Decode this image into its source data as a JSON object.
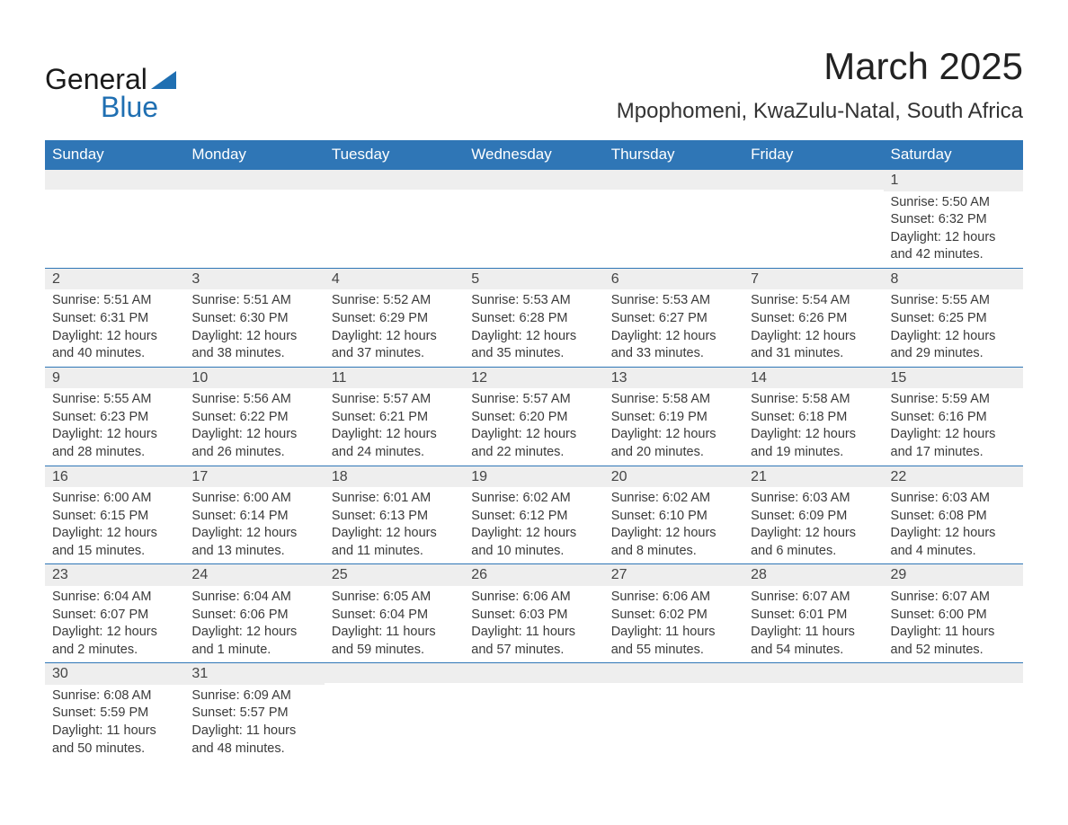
{
  "logo": {
    "text1": "General",
    "text2": "Blue",
    "color_text": "#1a1a1a",
    "color_blue": "#1f6fb2"
  },
  "header": {
    "month_title": "March 2025",
    "location": "Mpophomeni, KwaZulu-Natal, South Africa"
  },
  "calendar": {
    "header_bg": "#2f76b6",
    "header_fg": "#ffffff",
    "daynum_bg": "#eeeeee",
    "border_color": "#2f76b6",
    "text_color": "#3a3a3a",
    "day_headers": [
      "Sunday",
      "Monday",
      "Tuesday",
      "Wednesday",
      "Thursday",
      "Friday",
      "Saturday"
    ],
    "weeks": [
      [
        {
          "day": "",
          "sunrise": "",
          "sunset": "",
          "daylight": ""
        },
        {
          "day": "",
          "sunrise": "",
          "sunset": "",
          "daylight": ""
        },
        {
          "day": "",
          "sunrise": "",
          "sunset": "",
          "daylight": ""
        },
        {
          "day": "",
          "sunrise": "",
          "sunset": "",
          "daylight": ""
        },
        {
          "day": "",
          "sunrise": "",
          "sunset": "",
          "daylight": ""
        },
        {
          "day": "",
          "sunrise": "",
          "sunset": "",
          "daylight": ""
        },
        {
          "day": "1",
          "sunrise": "Sunrise: 5:50 AM",
          "sunset": "Sunset: 6:32 PM",
          "daylight": "Daylight: 12 hours and 42 minutes."
        }
      ],
      [
        {
          "day": "2",
          "sunrise": "Sunrise: 5:51 AM",
          "sunset": "Sunset: 6:31 PM",
          "daylight": "Daylight: 12 hours and 40 minutes."
        },
        {
          "day": "3",
          "sunrise": "Sunrise: 5:51 AM",
          "sunset": "Sunset: 6:30 PM",
          "daylight": "Daylight: 12 hours and 38 minutes."
        },
        {
          "day": "4",
          "sunrise": "Sunrise: 5:52 AM",
          "sunset": "Sunset: 6:29 PM",
          "daylight": "Daylight: 12 hours and 37 minutes."
        },
        {
          "day": "5",
          "sunrise": "Sunrise: 5:53 AM",
          "sunset": "Sunset: 6:28 PM",
          "daylight": "Daylight: 12 hours and 35 minutes."
        },
        {
          "day": "6",
          "sunrise": "Sunrise: 5:53 AM",
          "sunset": "Sunset: 6:27 PM",
          "daylight": "Daylight: 12 hours and 33 minutes."
        },
        {
          "day": "7",
          "sunrise": "Sunrise: 5:54 AM",
          "sunset": "Sunset: 6:26 PM",
          "daylight": "Daylight: 12 hours and 31 minutes."
        },
        {
          "day": "8",
          "sunrise": "Sunrise: 5:55 AM",
          "sunset": "Sunset: 6:25 PM",
          "daylight": "Daylight: 12 hours and 29 minutes."
        }
      ],
      [
        {
          "day": "9",
          "sunrise": "Sunrise: 5:55 AM",
          "sunset": "Sunset: 6:23 PM",
          "daylight": "Daylight: 12 hours and 28 minutes."
        },
        {
          "day": "10",
          "sunrise": "Sunrise: 5:56 AM",
          "sunset": "Sunset: 6:22 PM",
          "daylight": "Daylight: 12 hours and 26 minutes."
        },
        {
          "day": "11",
          "sunrise": "Sunrise: 5:57 AM",
          "sunset": "Sunset: 6:21 PM",
          "daylight": "Daylight: 12 hours and 24 minutes."
        },
        {
          "day": "12",
          "sunrise": "Sunrise: 5:57 AM",
          "sunset": "Sunset: 6:20 PM",
          "daylight": "Daylight: 12 hours and 22 minutes."
        },
        {
          "day": "13",
          "sunrise": "Sunrise: 5:58 AM",
          "sunset": "Sunset: 6:19 PM",
          "daylight": "Daylight: 12 hours and 20 minutes."
        },
        {
          "day": "14",
          "sunrise": "Sunrise: 5:58 AM",
          "sunset": "Sunset: 6:18 PM",
          "daylight": "Daylight: 12 hours and 19 minutes."
        },
        {
          "day": "15",
          "sunrise": "Sunrise: 5:59 AM",
          "sunset": "Sunset: 6:16 PM",
          "daylight": "Daylight: 12 hours and 17 minutes."
        }
      ],
      [
        {
          "day": "16",
          "sunrise": "Sunrise: 6:00 AM",
          "sunset": "Sunset: 6:15 PM",
          "daylight": "Daylight: 12 hours and 15 minutes."
        },
        {
          "day": "17",
          "sunrise": "Sunrise: 6:00 AM",
          "sunset": "Sunset: 6:14 PM",
          "daylight": "Daylight: 12 hours and 13 minutes."
        },
        {
          "day": "18",
          "sunrise": "Sunrise: 6:01 AM",
          "sunset": "Sunset: 6:13 PM",
          "daylight": "Daylight: 12 hours and 11 minutes."
        },
        {
          "day": "19",
          "sunrise": "Sunrise: 6:02 AM",
          "sunset": "Sunset: 6:12 PM",
          "daylight": "Daylight: 12 hours and 10 minutes."
        },
        {
          "day": "20",
          "sunrise": "Sunrise: 6:02 AM",
          "sunset": "Sunset: 6:10 PM",
          "daylight": "Daylight: 12 hours and 8 minutes."
        },
        {
          "day": "21",
          "sunrise": "Sunrise: 6:03 AM",
          "sunset": "Sunset: 6:09 PM",
          "daylight": "Daylight: 12 hours and 6 minutes."
        },
        {
          "day": "22",
          "sunrise": "Sunrise: 6:03 AM",
          "sunset": "Sunset: 6:08 PM",
          "daylight": "Daylight: 12 hours and 4 minutes."
        }
      ],
      [
        {
          "day": "23",
          "sunrise": "Sunrise: 6:04 AM",
          "sunset": "Sunset: 6:07 PM",
          "daylight": "Daylight: 12 hours and 2 minutes."
        },
        {
          "day": "24",
          "sunrise": "Sunrise: 6:04 AM",
          "sunset": "Sunset: 6:06 PM",
          "daylight": "Daylight: 12 hours and 1 minute."
        },
        {
          "day": "25",
          "sunrise": "Sunrise: 6:05 AM",
          "sunset": "Sunset: 6:04 PM",
          "daylight": "Daylight: 11 hours and 59 minutes."
        },
        {
          "day": "26",
          "sunrise": "Sunrise: 6:06 AM",
          "sunset": "Sunset: 6:03 PM",
          "daylight": "Daylight: 11 hours and 57 minutes."
        },
        {
          "day": "27",
          "sunrise": "Sunrise: 6:06 AM",
          "sunset": "Sunset: 6:02 PM",
          "daylight": "Daylight: 11 hours and 55 minutes."
        },
        {
          "day": "28",
          "sunrise": "Sunrise: 6:07 AM",
          "sunset": "Sunset: 6:01 PM",
          "daylight": "Daylight: 11 hours and 54 minutes."
        },
        {
          "day": "29",
          "sunrise": "Sunrise: 6:07 AM",
          "sunset": "Sunset: 6:00 PM",
          "daylight": "Daylight: 11 hours and 52 minutes."
        }
      ],
      [
        {
          "day": "30",
          "sunrise": "Sunrise: 6:08 AM",
          "sunset": "Sunset: 5:59 PM",
          "daylight": "Daylight: 11 hours and 50 minutes."
        },
        {
          "day": "31",
          "sunrise": "Sunrise: 6:09 AM",
          "sunset": "Sunset: 5:57 PM",
          "daylight": "Daylight: 11 hours and 48 minutes."
        },
        {
          "day": "",
          "sunrise": "",
          "sunset": "",
          "daylight": ""
        },
        {
          "day": "",
          "sunrise": "",
          "sunset": "",
          "daylight": ""
        },
        {
          "day": "",
          "sunrise": "",
          "sunset": "",
          "daylight": ""
        },
        {
          "day": "",
          "sunrise": "",
          "sunset": "",
          "daylight": ""
        },
        {
          "day": "",
          "sunrise": "",
          "sunset": "",
          "daylight": ""
        }
      ]
    ]
  }
}
